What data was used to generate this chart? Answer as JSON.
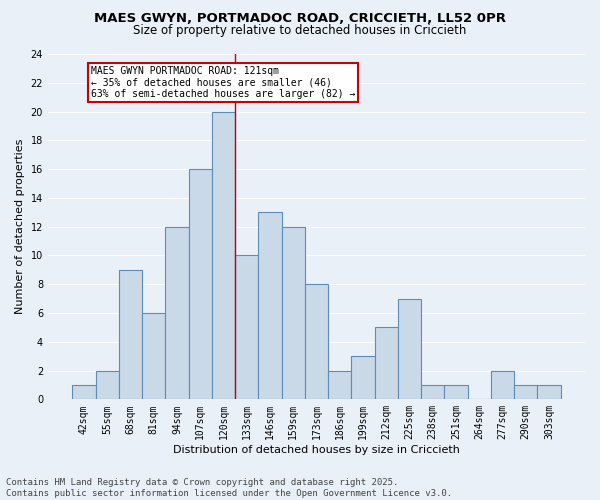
{
  "title1": "MAES GWYN, PORTMADOC ROAD, CRICCIETH, LL52 0PR",
  "title2": "Size of property relative to detached houses in Criccieth",
  "xlabel": "Distribution of detached houses by size in Criccieth",
  "ylabel": "Number of detached properties",
  "categories": [
    "42sqm",
    "55sqm",
    "68sqm",
    "81sqm",
    "94sqm",
    "107sqm",
    "120sqm",
    "133sqm",
    "146sqm",
    "159sqm",
    "173sqm",
    "186sqm",
    "199sqm",
    "212sqm",
    "225sqm",
    "238sqm",
    "251sqm",
    "264sqm",
    "277sqm",
    "290sqm",
    "303sqm"
  ],
  "values": [
    1,
    2,
    9,
    6,
    12,
    16,
    20,
    10,
    13,
    12,
    8,
    2,
    3,
    5,
    7,
    1,
    1,
    0,
    2,
    1,
    1
  ],
  "bar_color": "#c9d9e8",
  "bar_edge_color": "#5b8db8",
  "bar_edge_width": 0.8,
  "background_color": "#eaf0f8",
  "grid_color": "#ffffff",
  "annotation_text": "MAES GWYN PORTMADOC ROAD: 121sqm\n← 35% of detached houses are smaller (46)\n63% of semi-detached houses are larger (82) →",
  "annotation_box_color": "#ffffff",
  "annotation_box_edge": "#cc0000",
  "red_line_x": 6.5,
  "ylim": [
    0,
    24
  ],
  "yticks": [
    0,
    2,
    4,
    6,
    8,
    10,
    12,
    14,
    16,
    18,
    20,
    22,
    24
  ],
  "footer": "Contains HM Land Registry data © Crown copyright and database right 2025.\nContains public sector information licensed under the Open Government Licence v3.0.",
  "title_fontsize": 9.5,
  "subtitle_fontsize": 8.5,
  "axis_label_fontsize": 8,
  "tick_fontsize": 7,
  "annotation_fontsize": 7,
  "footer_fontsize": 6.5
}
